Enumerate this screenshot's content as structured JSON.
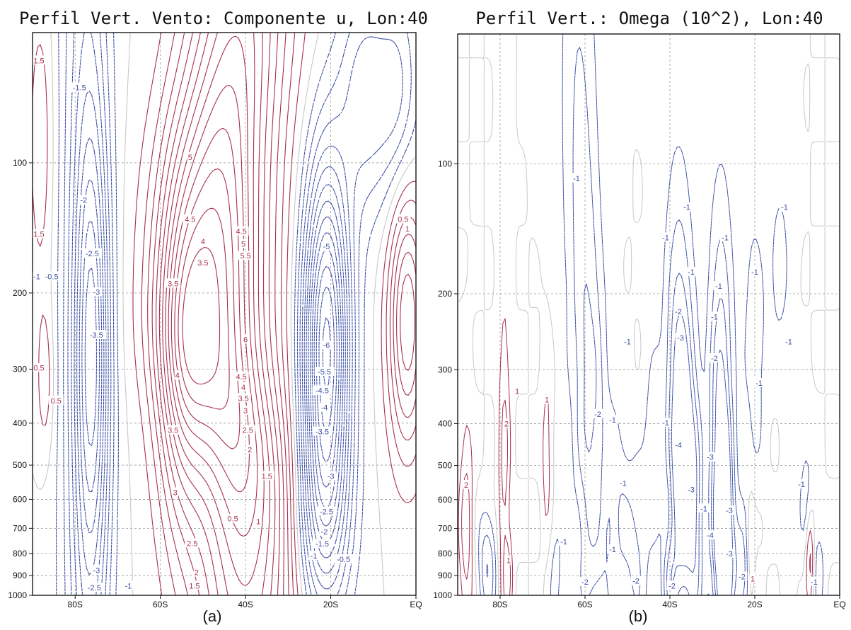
{
  "chart_data": [
    {
      "type": "contour",
      "panel": "(a)",
      "title": "Perfil Vert. Vento: Componente u, Lon:40",
      "x_ticks": [
        {
          "label": "80S",
          "value": -80
        },
        {
          "label": "60S",
          "value": -60
        },
        {
          "label": "40S",
          "value": -40
        },
        {
          "label": "20S",
          "value": -20
        },
        {
          "label": "EQ",
          "value": 0
        }
      ],
      "y_ticks": [
        {
          "label": "100",
          "value": 100
        },
        {
          "label": "200",
          "value": 200
        },
        {
          "label": "300",
          "value": 300
        },
        {
          "label": "400",
          "value": 400
        },
        {
          "label": "500",
          "value": 500
        },
        {
          "label": "600",
          "value": 600
        },
        {
          "label": "700",
          "value": 700
        },
        {
          "label": "800",
          "value": 800
        },
        {
          "label": "900",
          "value": 900
        },
        {
          "label": "1000",
          "value": 1000
        }
      ],
      "xlim": [
        -90,
        0
      ],
      "ylim": [
        1000,
        50
      ],
      "y_scale": "log",
      "grid": true,
      "colors": {
        "positive": "#a8304a",
        "negative": "#3a4fa6",
        "zero": "#c8c8c8"
      },
      "contour_labels": [
        {
          "text": "1.5",
          "x": -88.5,
          "p": 58
        },
        {
          "text": "-1.5",
          "x": -79,
          "p": 67
        },
        {
          "text": "5",
          "x": -53,
          "p": 97
        },
        {
          "text": "-2",
          "x": -78,
          "p": 122
        },
        {
          "text": "4.5",
          "x": -53,
          "p": 135
        },
        {
          "text": "0.5",
          "x": -3,
          "p": 135
        },
        {
          "text": "1",
          "x": -2,
          "p": 142
        },
        {
          "text": "4.5",
          "x": -41,
          "p": 144
        },
        {
          "text": "1.5",
          "x": -88.5,
          "p": 146
        },
        {
          "text": "4",
          "x": -50,
          "p": 152
        },
        {
          "text": "5",
          "x": -40.5,
          "p": 154
        },
        {
          "text": "-5",
          "x": -21,
          "p": 156
        },
        {
          "text": "-2.5",
          "x": -76,
          "p": 162
        },
        {
          "text": "5.5",
          "x": -40,
          "p": 164
        },
        {
          "text": "3.5",
          "x": -50,
          "p": 170
        },
        {
          "text": "-1",
          "x": -89,
          "p": 183
        },
        {
          "text": "-0.5",
          "x": -85.5,
          "p": 183
        },
        {
          "text": "3.5",
          "x": -57,
          "p": 190
        },
        {
          "text": "-3",
          "x": -75,
          "p": 199
        },
        {
          "text": "6",
          "x": -40,
          "p": 256
        },
        {
          "text": "-3.5",
          "x": -75,
          "p": 250
        },
        {
          "text": "-6",
          "x": -21,
          "p": 264
        },
        {
          "text": "0.5",
          "x": -88.5,
          "p": 298
        },
        {
          "text": "-5.5",
          "x": -21.5,
          "p": 304
        },
        {
          "text": "4",
          "x": -56,
          "p": 310
        },
        {
          "text": "4.5",
          "x": -41,
          "p": 312
        },
        {
          "text": "4",
          "x": -40.5,
          "p": 330
        },
        {
          "text": "-4.5",
          "x": -22,
          "p": 336
        },
        {
          "text": "0.5",
          "x": -84.5,
          "p": 355
        },
        {
          "text": "3.5",
          "x": -40.5,
          "p": 350
        },
        {
          "text": "3",
          "x": -40,
          "p": 374
        },
        {
          "text": "-4",
          "x": -21.5,
          "p": 368
        },
        {
          "text": "3.5",
          "x": -57,
          "p": 415
        },
        {
          "text": "2.5",
          "x": -39.5,
          "p": 415
        },
        {
          "text": "-3.5",
          "x": -22,
          "p": 418
        },
        {
          "text": "2",
          "x": -39,
          "p": 460
        },
        {
          "text": "-3",
          "x": -20,
          "p": 530
        },
        {
          "text": "1.5",
          "x": -35,
          "p": 530
        },
        {
          "text": "3",
          "x": -56.5,
          "p": 578
        },
        {
          "text": "-2.5",
          "x": -21,
          "p": 640
        },
        {
          "text": "0.5",
          "x": -43,
          "p": 665
        },
        {
          "text": "1",
          "x": -37,
          "p": 675
        },
        {
          "text": "-2",
          "x": -21.5,
          "p": 712
        },
        {
          "text": "2.5",
          "x": -52.5,
          "p": 758
        },
        {
          "text": "-1.5",
          "x": -22,
          "p": 760
        },
        {
          "text": "-1",
          "x": -24,
          "p": 810
        },
        {
          "text": "-0.5",
          "x": -17,
          "p": 825
        },
        {
          "text": "-3",
          "x": -75,
          "p": 875
        },
        {
          "text": "2",
          "x": -51.5,
          "p": 885
        },
        {
          "text": "-2.5",
          "x": -75.5,
          "p": 960
        },
        {
          "text": "-1",
          "x": -67.5,
          "p": 950
        },
        {
          "text": "1.5",
          "x": -52,
          "p": 950
        }
      ]
    },
    {
      "type": "contour",
      "panel": "(b)",
      "title": "Perfil Vert.: Omega (10^2), Lon:40",
      "x_ticks": [
        {
          "label": "80S",
          "value": -80
        },
        {
          "label": "60S",
          "value": -60
        },
        {
          "label": "40S",
          "value": -40
        },
        {
          "label": "20S",
          "value": -20
        },
        {
          "label": "EQ",
          "value": 0
        }
      ],
      "y_ticks": [
        {
          "label": "100",
          "value": 100
        },
        {
          "label": "200",
          "value": 200
        },
        {
          "label": "300",
          "value": 300
        },
        {
          "label": "400",
          "value": 400
        },
        {
          "label": "500",
          "value": 500
        },
        {
          "label": "600",
          "value": 600
        },
        {
          "label": "700",
          "value": 700
        },
        {
          "label": "800",
          "value": 800
        },
        {
          "label": "900",
          "value": 900
        },
        {
          "label": "1000",
          "value": 1000
        }
      ],
      "xlim": [
        -90,
        0
      ],
      "ylim": [
        1000,
        50
      ],
      "y_scale": "log",
      "grid": true,
      "colors": {
        "positive": "#a8304a",
        "negative": "#3a4fa6",
        "zero": "#c8c8c8"
      },
      "contour_labels": [
        {
          "text": "-1",
          "x": -62,
          "p": 108
        },
        {
          "text": "-1",
          "x": -36,
          "p": 126
        },
        {
          "text": "-1",
          "x": -13,
          "p": 126
        },
        {
          "text": "-1",
          "x": -41,
          "p": 148
        },
        {
          "text": "-1",
          "x": -27,
          "p": 148
        },
        {
          "text": "-1",
          "x": -35,
          "p": 178
        },
        {
          "text": "-1",
          "x": -20,
          "p": 178
        },
        {
          "text": "-1",
          "x": -28.5,
          "p": 192
        },
        {
          "text": "-2",
          "x": -38,
          "p": 220
        },
        {
          "text": "-1",
          "x": -29.5,
          "p": 226
        },
        {
          "text": "-3",
          "x": -37.5,
          "p": 253
        },
        {
          "text": "-1",
          "x": -50,
          "p": 258
        },
        {
          "text": "-1",
          "x": -12,
          "p": 258
        },
        {
          "text": "-2",
          "x": -29.5,
          "p": 282
        },
        {
          "text": "-1",
          "x": -19,
          "p": 322
        },
        {
          "text": "1",
          "x": -76,
          "p": 336
        },
        {
          "text": "1",
          "x": -69,
          "p": 352
        },
        {
          "text": "-2",
          "x": -57,
          "p": 380
        },
        {
          "text": "-1",
          "x": -53.5,
          "p": 392
        },
        {
          "text": "2",
          "x": -78.5,
          "p": 400
        },
        {
          "text": "-1",
          "x": -41,
          "p": 398
        },
        {
          "text": "-4",
          "x": -38,
          "p": 448
        },
        {
          "text": "-3",
          "x": -30.5,
          "p": 478
        },
        {
          "text": "-1",
          "x": -51,
          "p": 550
        },
        {
          "text": "-3",
          "x": -35,
          "p": 568
        },
        {
          "text": "2",
          "x": -88,
          "p": 555
        },
        {
          "text": "-1",
          "x": -9,
          "p": 553
        },
        {
          "text": "-1",
          "x": -32,
          "p": 629
        },
        {
          "text": "-3",
          "x": -26,
          "p": 636
        },
        {
          "text": "-1",
          "x": -65,
          "p": 751
        },
        {
          "text": "-4",
          "x": -30.5,
          "p": 726
        },
        {
          "text": "-1",
          "x": -53.5,
          "p": 783
        },
        {
          "text": "-3",
          "x": -26,
          "p": 800
        },
        {
          "text": "1",
          "x": -78,
          "p": 830
        },
        {
          "text": "-2",
          "x": -60,
          "p": 930
        },
        {
          "text": "-2",
          "x": -48,
          "p": 925
        },
        {
          "text": "-2",
          "x": -39.5,
          "p": 950
        },
        {
          "text": "-2",
          "x": -23,
          "p": 905
        },
        {
          "text": "1",
          "x": -20.5,
          "p": 915
        },
        {
          "text": "-1",
          "x": -6,
          "p": 930
        }
      ]
    }
  ]
}
